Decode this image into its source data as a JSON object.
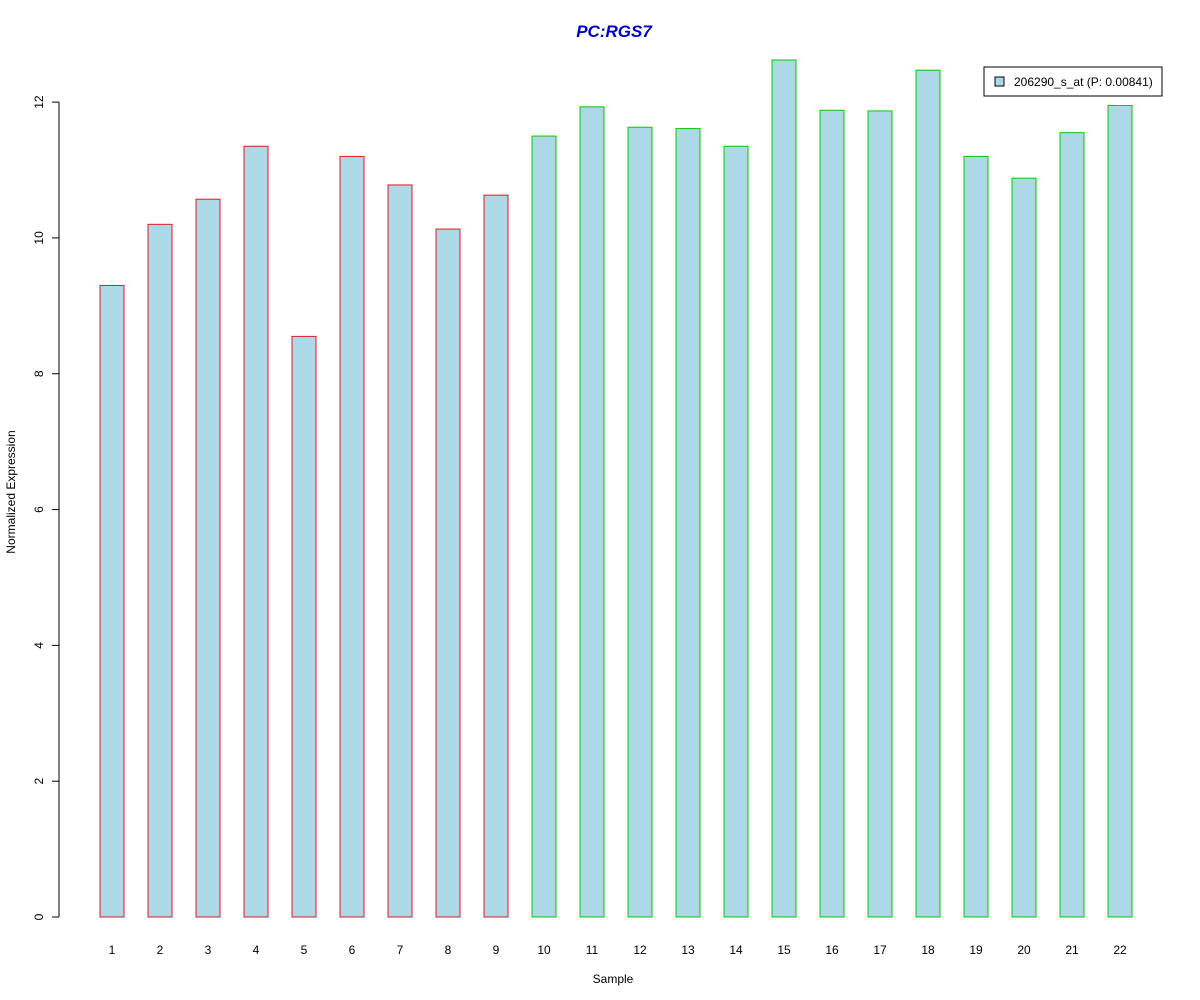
{
  "chart_data": {
    "type": "bar",
    "title": "PC:RGS7",
    "xlabel": "Sample",
    "ylabel": "Normalized Expression",
    "categories": [
      "1",
      "2",
      "3",
      "4",
      "5",
      "6",
      "7",
      "8",
      "9",
      "10",
      "11",
      "12",
      "13",
      "14",
      "15",
      "16",
      "17",
      "18",
      "19",
      "20",
      "21",
      "22"
    ],
    "series": [
      {
        "name": "206290_s_at (P: 0.00841)",
        "values": [
          9.3,
          10.2,
          10.57,
          11.35,
          8.55,
          11.2,
          10.78,
          10.13,
          10.63,
          11.5,
          11.93,
          11.63,
          11.61,
          11.35,
          12.62,
          11.88,
          11.87,
          12.47,
          11.2,
          10.88,
          11.55,
          11.95
        ]
      }
    ],
    "group_edge_colors": [
      "#e31a1c",
      "#e31a1c",
      "#e31a1c",
      "#e31a1c",
      "#e31a1c",
      "#e31a1c",
      "#e31a1c",
      "#e31a1c",
      "#e31a1c",
      "#00cc00",
      "#00cc00",
      "#00cc00",
      "#00cc00",
      "#00cc00",
      "#00cc00",
      "#00cc00",
      "#00cc00",
      "#00cc00",
      "#00cc00",
      "#00cc00",
      "#00cc00",
      "#00cc00"
    ],
    "yticks": [
      "0",
      "2",
      "4",
      "6",
      "8",
      "10",
      "12"
    ],
    "ylim": [
      0,
      12.62
    ],
    "grid": false,
    "legend_position": "top-right"
  },
  "colors": {
    "title": "#0000cc",
    "bar_fill": "#add8e6",
    "axis": "#000000"
  }
}
